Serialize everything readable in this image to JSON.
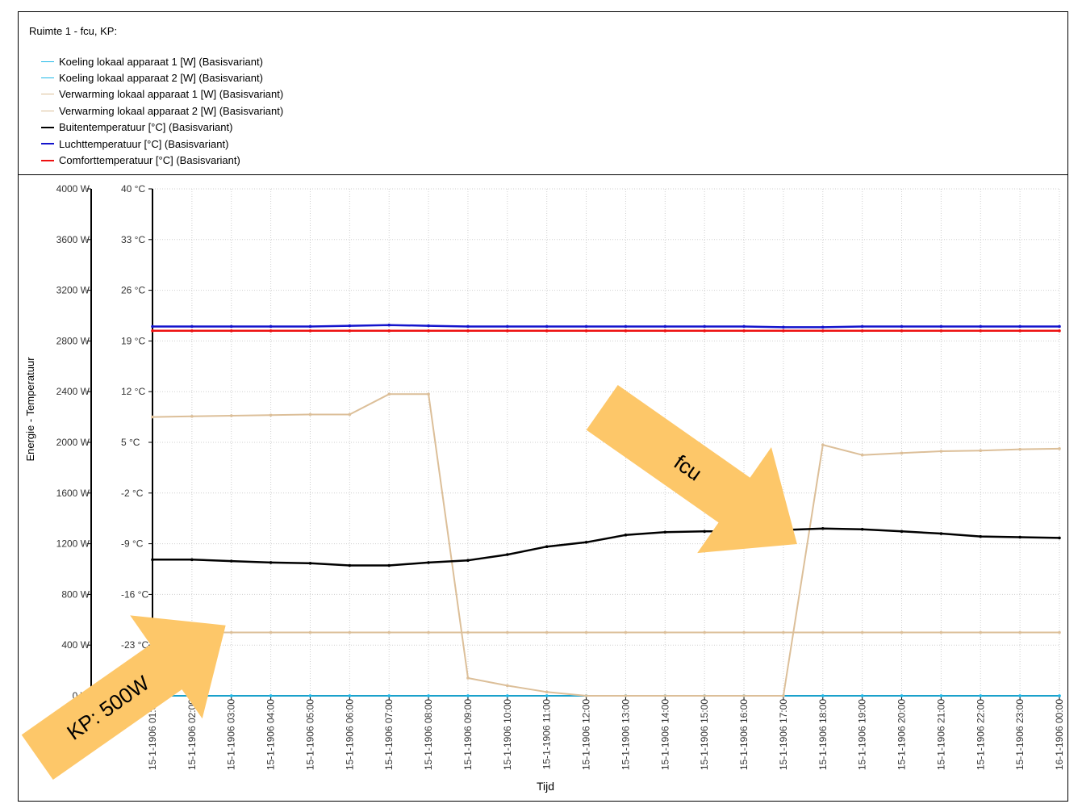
{
  "window": {
    "title": "Ruimte 1 - fcu, KP:"
  },
  "chart_data": {
    "type": "line",
    "title": "Ruimte 1 - fcu, KP:",
    "xlabel": "Tijd",
    "ylabel": "Energie - Temperatuur",
    "grid": true,
    "legend_position": "top-left",
    "x": [
      "15-1-1906 01:00",
      "15-1-1906 02:00",
      "15-1-1906 03:00",
      "15-1-1906 04:00",
      "15-1-1906 05:00",
      "15-1-1906 06:00",
      "15-1-1906 07:00",
      "15-1-1906 08:00",
      "15-1-1906 09:00",
      "15-1-1906 10:00",
      "15-1-1906 11:00",
      "15-1-1906 12:00",
      "15-1-1906 13:00",
      "15-1-1906 14:00",
      "15-1-1906 15:00",
      "15-1-1906 16:00",
      "15-1-1906 17:00",
      "15-1-1906 18:00",
      "15-1-1906 19:00",
      "15-1-1906 20:00",
      "15-1-1906 21:00",
      "15-1-1906 22:00",
      "15-1-1906 23:00",
      "16-1-1906 00:00"
    ],
    "y_left_ticks": [
      "4000 W",
      "3600 W",
      "3200 W",
      "2800 W",
      "2400 W",
      "2000 W",
      "1600 W",
      "1200 W",
      "800 W",
      "400 W",
      "0 W"
    ],
    "y_left_range": [
      0,
      4000
    ],
    "y_right_ticks": [
      "40 °C",
      "33 °C",
      "26 °C",
      "19 °C",
      "12 °C",
      "5 °C",
      "-2 °C",
      "-9 °C",
      "-16 °C",
      "-23 °C"
    ],
    "y_right_range": [
      -30,
      40
    ],
    "series": [
      {
        "name": "Koeling lokaal apparaat 1 [W] (Basisvariant)",
        "axis": "W",
        "color": "#1fb8e8",
        "values": [
          0,
          0,
          0,
          0,
          0,
          0,
          0,
          0,
          0,
          0,
          0,
          0,
          0,
          0,
          0,
          0,
          0,
          0,
          0,
          0,
          0,
          0,
          0,
          0
        ]
      },
      {
        "name": "Koeling lokaal apparaat 2 [W] (Basisvariant)",
        "axis": "W",
        "color": "#1fb8e8",
        "values": [
          0,
          0,
          0,
          0,
          0,
          0,
          0,
          0,
          0,
          0,
          0,
          0,
          0,
          0,
          0,
          0,
          0,
          0,
          0,
          0,
          0,
          0,
          0,
          0
        ]
      },
      {
        "name": "Verwarming lokaal apparaat 1 [W] (Basisvariant)",
        "axis": "W",
        "color": "#dcbf99",
        "values": [
          2200,
          2205,
          2210,
          2215,
          2220,
          2220,
          2380,
          2380,
          140,
          80,
          30,
          0,
          0,
          0,
          0,
          0,
          0,
          1980,
          1900,
          1915,
          1930,
          1935,
          1945,
          1950
        ]
      },
      {
        "name": "Verwarming lokaal apparaat 2 [W] (Basisvariant)",
        "axis": "W",
        "color": "#dcbf99",
        "values": [
          500,
          500,
          500,
          500,
          500,
          500,
          500,
          500,
          500,
          500,
          500,
          500,
          500,
          500,
          500,
          500,
          500,
          500,
          500,
          500,
          500,
          500,
          500,
          500
        ]
      },
      {
        "name": "Buitentemperatuur [°C] (Basisvariant)",
        "axis": "°C",
        "color": "#000000",
        "values": [
          -11.2,
          -11.2,
          -11.4,
          -11.6,
          -11.7,
          -12.0,
          -12.0,
          -11.6,
          -11.3,
          -10.5,
          -9.4,
          -8.8,
          -7.8,
          -7.4,
          -7.3,
          -7.3,
          -7.1,
          -6.9,
          -7.0,
          -7.3,
          -7.6,
          -8.0,
          -8.1,
          -8.2
        ]
      },
      {
        "name": "Luchttemperatuur [°C] (Basisvariant)",
        "axis": "°C",
        "color": "#1414cc",
        "values": [
          21.0,
          21.0,
          21.0,
          21.0,
          21.0,
          21.1,
          21.2,
          21.1,
          21.0,
          21.0,
          21.0,
          21.0,
          21.0,
          21.0,
          21.0,
          21.0,
          20.9,
          20.9,
          21.0,
          21.0,
          21.0,
          21.0,
          21.0,
          21.0
        ]
      },
      {
        "name": "Comforttemperatuur [°C] (Basisvariant)",
        "axis": "°C",
        "color": "#ee1111",
        "values": [
          20.4,
          20.4,
          20.4,
          20.4,
          20.4,
          20.4,
          20.4,
          20.4,
          20.4,
          20.4,
          20.4,
          20.4,
          20.4,
          20.4,
          20.4,
          20.4,
          20.4,
          20.4,
          20.4,
          20.4,
          20.4,
          20.4,
          20.4,
          20.4
        ]
      }
    ]
  },
  "annotations": [
    {
      "text": "fcu",
      "color": "#fdc769"
    },
    {
      "text": "KP: 500W",
      "color": "#fdc769"
    }
  ]
}
